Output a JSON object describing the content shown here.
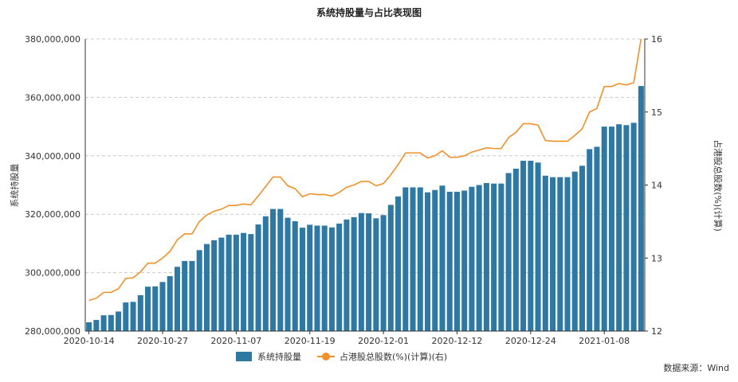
{
  "chart_data": {
    "type": "bar",
    "title": "系统持股量与占比表现图",
    "ylabel": "系统持股量",
    "y2label": "占港股总股数(%)(计算)",
    "ylim": [
      280000000,
      380000000
    ],
    "y2lim": [
      12,
      16
    ],
    "yticks": [
      "380,000,000",
      "360,000,000",
      "340,000,000",
      "320,000,000",
      "300,000,000",
      "280,000,000"
    ],
    "y2ticks": [
      "16",
      "15",
      "14",
      "13",
      "12"
    ],
    "xticklabels": [
      "2020-10-14",
      "2020-10-27",
      "2020-11-07",
      "2020-11-19",
      "2020-12-01",
      "2020-12-12",
      "2020-12-24",
      "2021-01-08"
    ],
    "xtick_indices": [
      0,
      10,
      20,
      30,
      40,
      50,
      60,
      70
    ],
    "grid": true,
    "legend_position": "bottom",
    "source": "数据来源：Wind",
    "colors": {
      "bar": "#2e78a4",
      "line": "#f0912a",
      "grid": "#cccccc",
      "axis": "#333333"
    },
    "series": [
      {
        "name": "系统持股量",
        "type": "bar",
        "axis": "left",
        "values": [
          283000000,
          283800000,
          285400000,
          285500000,
          286700000,
          289800000,
          290000000,
          292300000,
          295200000,
          295300000,
          296800000,
          298800000,
          302000000,
          304000000,
          304000000,
          307700000,
          309800000,
          311100000,
          312000000,
          313000000,
          313000000,
          313600000,
          313200000,
          316500000,
          319300000,
          321800000,
          321800000,
          318800000,
          317600000,
          315400000,
          316400000,
          316100000,
          316100000,
          315500000,
          316800000,
          318200000,
          319000000,
          320400000,
          320300000,
          318600000,
          319700000,
          323200000,
          326100000,
          329200000,
          329200000,
          329200000,
          327500000,
          328300000,
          329800000,
          327700000,
          327700000,
          328100000,
          329400000,
          330000000,
          330700000,
          330500000,
          330500000,
          334100000,
          335600000,
          338300000,
          338300000,
          337700000,
          333200000,
          332700000,
          332700000,
          332700000,
          334600000,
          336600000,
          342300000,
          343100000,
          350000000,
          350000000,
          350800000,
          350500000,
          351300000,
          363900000
        ]
      },
      {
        "name": "占港股总股数(%)(计算)(右)",
        "type": "line",
        "axis": "right",
        "values": [
          12.42,
          12.45,
          12.53,
          12.53,
          12.58,
          12.72,
          12.73,
          12.81,
          12.93,
          12.93,
          13.0,
          13.09,
          13.25,
          13.33,
          13.33,
          13.5,
          13.59,
          13.64,
          13.67,
          13.72,
          13.72,
          13.74,
          13.73,
          13.85,
          13.98,
          14.11,
          14.11,
          13.99,
          13.95,
          13.84,
          13.88,
          13.87,
          13.87,
          13.85,
          13.9,
          13.97,
          14.0,
          14.05,
          14.05,
          13.99,
          14.02,
          14.14,
          14.28,
          14.44,
          14.44,
          14.44,
          14.37,
          14.4,
          14.47,
          14.38,
          14.38,
          14.4,
          14.45,
          14.48,
          14.51,
          14.5,
          14.5,
          14.65,
          14.72,
          14.84,
          14.84,
          14.82,
          14.61,
          14.6,
          14.6,
          14.6,
          14.68,
          14.77,
          15.0,
          15.05,
          15.35,
          15.35,
          15.39,
          15.37,
          15.4,
          16.0
        ]
      }
    ]
  }
}
